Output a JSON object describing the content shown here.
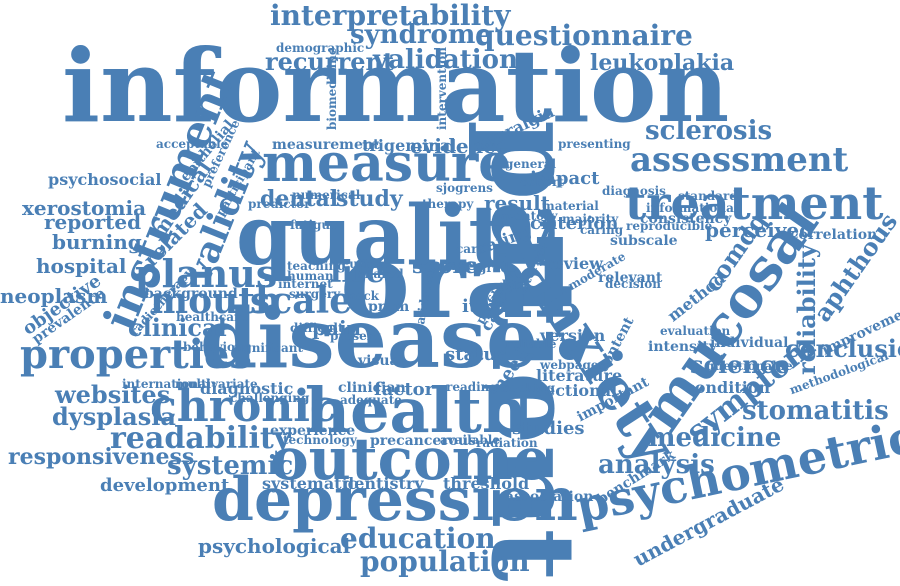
{
  "colors": {
    "word": "#4a7fb5",
    "background": "#ffffff"
  },
  "words": [
    "information",
    "patient",
    "disease",
    "oral",
    "quality",
    "measure",
    "health",
    "outcome",
    "depression",
    "anxiety",
    "mucosal",
    "psychometric",
    "treatment",
    "assessment",
    "instrument",
    "chronic",
    "properties",
    "validity",
    "planus",
    "mouth",
    "scale",
    "life",
    "readability",
    "symptom",
    "interpretability",
    "questionnaire",
    "syndrome",
    "validation",
    "recurrent",
    "leukoplakia",
    "sclerosis",
    "stomatitis",
    "medicine",
    "analysis",
    "education",
    "population",
    "conclusion",
    "science",
    "reliability",
    "aphthous",
    "comdq",
    "dental",
    "study",
    "score",
    "clinical",
    "websites",
    "dysplasia",
    "responsiveness",
    "systemic",
    "hospital",
    "neoplasm",
    "xerostomia",
    "reported",
    "burning",
    "related",
    "medical",
    "psychosocial",
    "evidence",
    "trigeminal",
    "neuralgia",
    "measurement",
    "impact",
    "result",
    "criterion",
    "perceived",
    "correlation",
    "undergraduate",
    "development",
    "systematic",
    "dentistry",
    "threshold",
    "psychological",
    "studies",
    "literature",
    "sectional",
    "need",
    "factor",
    "diagnostic",
    "background",
    "radiotherapy",
    "prevalence",
    "objective",
    "epithelial",
    "predictor",
    "participant",
    "pain",
    "item",
    "prom",
    "status",
    "version",
    "review",
    "condition",
    "individual",
    "improvement",
    "method",
    "demographic",
    "acceptable",
    "presenting",
    "consistency",
    "inventory",
    "general",
    "sjogrens",
    "visual",
    "international",
    "multivariate",
    "experience",
    "technology",
    "precancerous",
    "available",
    "radiation",
    "association",
    "benchmark",
    "important",
    "content",
    "intensity",
    "rating",
    "relevant",
    "decision",
    "subscale",
    "cancer",
    "cross",
    "clinician",
    "adequate",
    "reading",
    "challenging",
    "behaviour",
    "significant",
    "human",
    "internet",
    "therapy",
    "diagnosis",
    "surgery",
    "neck",
    "biomedicine",
    "intervention",
    "evaluation",
    "questionable",
    "methodological",
    "moderate",
    "internal",
    "reliable",
    "validated",
    "webpages",
    "healthcare",
    "preference",
    "numerical",
    "standard",
    "informational",
    "fatigue",
    "teaching",
    "current",
    "shared",
    "difficult",
    "present",
    "seeking",
    "caring",
    "data",
    "grade",
    "care",
    "profile",
    "reproducible",
    "majority",
    "material",
    "cohort",
    "score"
  ]
}
